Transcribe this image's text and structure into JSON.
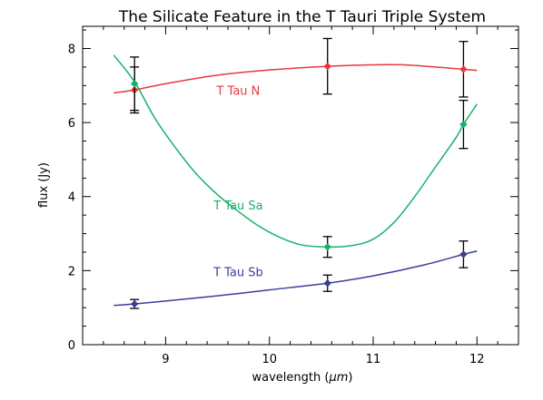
{
  "chart_data": {
    "type": "line",
    "title": "The Silicate Feature in the T Tauri Triple System",
    "xlabel_prefix": "wavelength (",
    "xlabel_unit": "μm",
    "xlabel_suffix": ")",
    "ylabel": "flux (Jy)",
    "xlim": [
      8.2,
      12.4
    ],
    "ylim": [
      0,
      8.6
    ],
    "xticks": [
      9,
      10,
      11,
      12
    ],
    "yticks": [
      0,
      2,
      4,
      6,
      8
    ],
    "grid": false,
    "legend": "none",
    "series": [
      {
        "name": "T Tau N",
        "color": "#e8383d",
        "label_pos": [
          9.7,
          6.75
        ],
        "curve_x": [
          8.5,
          8.7,
          9.0,
          9.5,
          10.0,
          10.56,
          11.0,
          11.3,
          11.6,
          11.87,
          12.0
        ],
        "curve_y": [
          6.8,
          6.88,
          7.05,
          7.28,
          7.42,
          7.52,
          7.56,
          7.56,
          7.5,
          7.44,
          7.41
        ],
        "points": [
          {
            "x": 8.7,
            "y": 6.88,
            "err": 0.62
          },
          {
            "x": 10.56,
            "y": 7.52,
            "err": 0.75
          },
          {
            "x": 11.87,
            "y": 7.44,
            "err": 0.75
          }
        ]
      },
      {
        "name": "T Tau Sa",
        "color": "#17b06a",
        "label_pos": [
          9.7,
          3.65
        ],
        "curve_x": [
          8.5,
          8.7,
          8.9,
          9.1,
          9.3,
          9.5,
          9.7,
          9.9,
          10.1,
          10.3,
          10.56,
          10.8,
          11.0,
          11.2,
          11.4,
          11.6,
          11.8,
          11.87,
          12.0
        ],
        "curve_y": [
          7.82,
          7.1,
          6.1,
          5.3,
          4.6,
          4.05,
          3.6,
          3.2,
          2.9,
          2.7,
          2.64,
          2.68,
          2.85,
          3.3,
          4.0,
          4.8,
          5.6,
          5.95,
          6.5
        ],
        "points": [
          {
            "x": 8.7,
            "y": 7.05,
            "err": 0.72
          },
          {
            "x": 10.56,
            "y": 2.64,
            "err": 0.28
          },
          {
            "x": 11.87,
            "y": 5.95,
            "err": 0.65
          }
        ]
      },
      {
        "name": "T Tau Sb",
        "color": "#3a3f97",
        "label_pos": [
          9.7,
          1.85
        ],
        "curve_x": [
          8.5,
          8.7,
          9.0,
          9.5,
          10.0,
          10.56,
          11.0,
          11.5,
          11.87,
          12.0
        ],
        "curve_y": [
          1.06,
          1.1,
          1.18,
          1.32,
          1.48,
          1.66,
          1.86,
          2.16,
          2.44,
          2.53
        ],
        "points": [
          {
            "x": 8.7,
            "y": 1.1,
            "err": 0.12
          },
          {
            "x": 10.56,
            "y": 1.66,
            "err": 0.22
          },
          {
            "x": 11.87,
            "y": 2.44,
            "err": 0.36
          }
        ]
      }
    ]
  }
}
